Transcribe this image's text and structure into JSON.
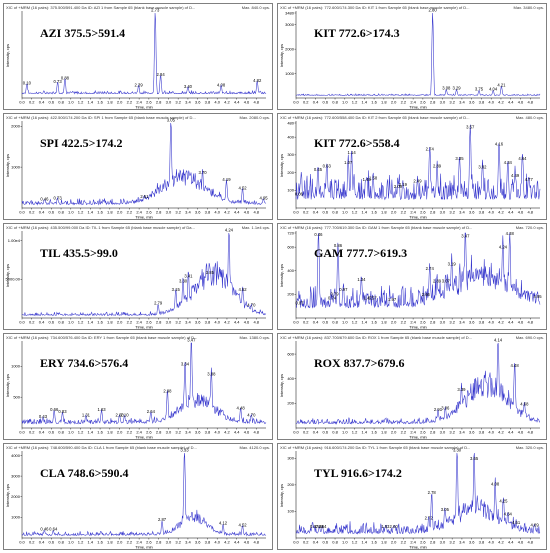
{
  "chart_data": [
    {
      "type": "line",
      "header": "XIC of +MRM (16 pairs): 375.500/591.400 Da ID: AZI 1 from Sample 65 (blank base muscle sample) of D...",
      "max_label": "Max. 840.0 cps.",
      "title": "AZI 375.5>591.4",
      "xlabel": "Time, min",
      "ylabel": "Intensity, cps",
      "y_ticks": [],
      "ylim": [
        0,
        840
      ],
      "xlim": [
        0,
        5
      ],
      "baseline": 0.05,
      "peaks": [
        {
          "x": 0.1,
          "y": 0.14,
          "label": "0.10"
        },
        {
          "x": 0.73,
          "y": 0.16,
          "label": "0.73"
        },
        {
          "x": 0.88,
          "y": 0.2,
          "label": "0.88"
        },
        {
          "x": 2.39,
          "y": 0.12,
          "label": "2.39"
        },
        {
          "x": 2.73,
          "y": 1.0,
          "label": "2.73"
        },
        {
          "x": 2.84,
          "y": 0.24,
          "label": "2.84"
        },
        {
          "x": 3.4,
          "y": 0.1,
          "label": "3.40"
        },
        {
          "x": 4.08,
          "y": 0.12,
          "label": "4.08"
        },
        {
          "x": 4.82,
          "y": 0.17,
          "label": "4.82"
        }
      ],
      "noise": 0.04,
      "hump": null
    },
    {
      "type": "line",
      "header": "XIC of +MRM (16 pairs): 772.600/174.300 Da ID: KIT 1 from Sample 65 (blank base muscle sample) of D...",
      "max_label": "Max. 3480.0 cps.",
      "title": "KIT 772.6>174.3",
      "xlabel": "Time, min",
      "ylabel": "Intensity, cps",
      "y_ticks": [
        "1000",
        "2000",
        "3000",
        "3480"
      ],
      "ylim": [
        0,
        3480
      ],
      "xlim": [
        0,
        5
      ],
      "baseline": 0.03,
      "peaks": [
        {
          "x": 2.8,
          "y": 1.0,
          "label": "2.80"
        },
        {
          "x": 3.08,
          "y": 0.08,
          "label": "3.08"
        },
        {
          "x": 3.29,
          "y": 0.08,
          "label": "3.29"
        },
        {
          "x": 3.75,
          "y": 0.07,
          "label": "3.75"
        },
        {
          "x": 4.04,
          "y": 0.07,
          "label": "4.04"
        },
        {
          "x": 4.21,
          "y": 0.12,
          "label": "4.21"
        }
      ],
      "noise": 0.02,
      "hump": null
    },
    {
      "type": "line",
      "header": "XIC of +MRM (16 pairs): 422.500/174.200 Da ID: SPI 1 from Sample 65 (blank base muscle sample) of D...",
      "max_label": "Max. 2080.0 cps.",
      "title": "SPI 422.5>174.2",
      "xlabel": "Time, min",
      "ylabel": "Intensity, cps",
      "y_ticks": [
        "1000",
        "2000"
      ],
      "ylim": [
        0,
        2080
      ],
      "xlim": [
        0,
        5
      ],
      "baseline": 0.04,
      "peaks": [
        {
          "x": 0.46,
          "y": 0.07,
          "label": "0.46"
        },
        {
          "x": 0.73,
          "y": 0.08,
          "label": "0.73"
        },
        {
          "x": 2.51,
          "y": 0.1,
          "label": "2.51"
        },
        {
          "x": 3.05,
          "y": 1.0,
          "label": "3.05"
        },
        {
          "x": 3.7,
          "y": 0.38,
          "label": "3.70"
        },
        {
          "x": 4.19,
          "y": 0.3,
          "label": "4.19"
        },
        {
          "x": 4.52,
          "y": 0.2,
          "label": "4.52"
        },
        {
          "x": 4.95,
          "y": 0.08,
          "label": "4.95"
        }
      ],
      "noise": 0.08,
      "hump": {
        "center": 3.3,
        "width": 0.6,
        "height": 0.35
      }
    },
    {
      "type": "line",
      "header": "XIC of +MRM (16 pairs): 772.600/558.400 Da ID: KIT 2 from Sample 65 (blank base muscle sample) of D...",
      "max_label": "Max. 480.0 cps.",
      "title": "KIT 772.6>558.4",
      "xlabel": "Time, min",
      "ylabel": "Intensity, cps",
      "y_ticks": [
        "100",
        "200",
        "300",
        "400",
        "480"
      ],
      "ylim": [
        0,
        480
      ],
      "xlim": [
        0,
        5
      ],
      "baseline": 0.1,
      "peaks": [
        {
          "x": 0.06,
          "y": 0.13,
          "label": "0.06"
        },
        {
          "x": 0.45,
          "y": 0.42,
          "label": "0.45"
        },
        {
          "x": 0.63,
          "y": 0.46,
          "label": "0.63"
        },
        {
          "x": 1.07,
          "y": 0.5,
          "label": "1.07"
        },
        {
          "x": 1.14,
          "y": 0.62,
          "label": "1.14"
        },
        {
          "x": 1.45,
          "y": 0.3,
          "label": "1.45"
        },
        {
          "x": 1.58,
          "y": 0.32,
          "label": "1.58"
        },
        {
          "x": 2.09,
          "y": 0.22,
          "label": "2.09"
        },
        {
          "x": 2.19,
          "y": 0.24,
          "label": "2.19"
        },
        {
          "x": 2.49,
          "y": 0.28,
          "label": "2.49"
        },
        {
          "x": 2.74,
          "y": 0.66,
          "label": "2.74"
        },
        {
          "x": 2.89,
          "y": 0.46,
          "label": "2.89"
        },
        {
          "x": 3.35,
          "y": 0.55,
          "label": "3.35"
        },
        {
          "x": 3.57,
          "y": 0.92,
          "label": "3.57"
        },
        {
          "x": 3.82,
          "y": 0.45,
          "label": "3.82"
        },
        {
          "x": 4.16,
          "y": 0.72,
          "label": "4.16"
        },
        {
          "x": 4.34,
          "y": 0.5,
          "label": "4.34"
        },
        {
          "x": 4.49,
          "y": 0.35,
          "label": "4.49"
        },
        {
          "x": 4.64,
          "y": 0.55,
          "label": "4.64"
        },
        {
          "x": 4.77,
          "y": 0.3,
          "label": "4.77"
        }
      ],
      "noise": 0.35,
      "hump": null
    },
    {
      "type": "line",
      "header": "XIC of +MRM (16 pairs): 435.500/99.000 Da ID: TIL 1 from Sample 65 (blank base muscle sample) of Da...",
      "max_label": "Max. 1.1e4 cps.",
      "title": "TIL 435.5>99.0",
      "xlabel": "Time, min",
      "ylabel": "Intensity, cps",
      "y_ticks": [
        "5000.00",
        "1.00e4"
      ],
      "ylim": [
        0,
        11000
      ],
      "xlim": [
        0,
        5
      ],
      "baseline": 0.03,
      "peaks": [
        {
          "x": 2.79,
          "y": 0.14,
          "label": "2.79"
        },
        {
          "x": 3.3,
          "y": 0.4,
          "label": "3.30"
        },
        {
          "x": 3.15,
          "y": 0.3,
          "label": "3.15"
        },
        {
          "x": 3.41,
          "y": 0.46,
          "label": "3.41"
        },
        {
          "x": 3.85,
          "y": 0.5,
          "label": "3.85"
        },
        {
          "x": 4.24,
          "y": 1.0,
          "label": "4.24"
        },
        {
          "x": 4.52,
          "y": 0.3,
          "label": "4.52"
        },
        {
          "x": 4.7,
          "y": 0.12,
          "label": "4.70"
        }
      ],
      "noise": 0.05,
      "hump": {
        "center": 3.9,
        "width": 0.55,
        "height": 0.55
      }
    },
    {
      "type": "line",
      "header": "XIC of +MRM (16 pairs): 777.700/619.300 Da ID: GAM 1 from Sample 65 (blank base muscle sample) of D...",
      "max_label": "Max. 720.0 cps.",
      "title": "GAM 777.7>619.3",
      "xlabel": "Time, min",
      "ylabel": "Intensity, cps",
      "y_ticks": [
        "200",
        "400",
        "600",
        "720"
      ],
      "ylim": [
        0,
        720
      ],
      "xlim": [
        0,
        5
      ],
      "baseline": 0.12,
      "peaks": [
        {
          "x": 0.07,
          "y": 0.14,
          "label": "0.07"
        },
        {
          "x": 0.46,
          "y": 0.95,
          "label": "0.46"
        },
        {
          "x": 0.74,
          "y": 0.2,
          "label": "0.74"
        },
        {
          "x": 0.79,
          "y": 0.25,
          "label": "0.79"
        },
        {
          "x": 0.86,
          "y": 0.82,
          "label": "0.86"
        },
        {
          "x": 0.97,
          "y": 0.3,
          "label": "0.97"
        },
        {
          "x": 1.34,
          "y": 0.42,
          "label": "1.34"
        },
        {
          "x": 1.47,
          "y": 0.2,
          "label": "1.47"
        },
        {
          "x": 1.57,
          "y": 0.2,
          "label": "1.57"
        },
        {
          "x": 1.97,
          "y": 0.18,
          "label": "1.97"
        },
        {
          "x": 2.66,
          "y": 0.24,
          "label": "2.66"
        },
        {
          "x": 2.74,
          "y": 0.55,
          "label": "2.74"
        },
        {
          "x": 2.89,
          "y": 0.4,
          "label": "2.89"
        },
        {
          "x": 3.07,
          "y": 0.4,
          "label": "3.07"
        },
        {
          "x": 3.19,
          "y": 0.6,
          "label": "3.19"
        },
        {
          "x": 3.47,
          "y": 0.93,
          "label": "3.47"
        },
        {
          "x": 4.24,
          "y": 0.8,
          "label": "4.24"
        },
        {
          "x": 4.38,
          "y": 0.96,
          "label": "4.38"
        },
        {
          "x": 4.95,
          "y": 0.22,
          "label": "4.95"
        }
      ],
      "noise": 0.3,
      "hump": {
        "center": 3.8,
        "width": 0.8,
        "height": 0.35
      }
    },
    {
      "type": "line",
      "header": "XIC of +MRM (16 pairs): 734.600/576.400 Da ID: ERY 1 from Sample 65 (blank base muscle sample) of D...",
      "max_label": "Max. 1380.0 cps.",
      "title": "ERY 734.6>576.4",
      "xlabel": "Time, min",
      "ylabel": "Intensity, cps",
      "y_ticks": [
        "500",
        "1000"
      ],
      "ylim": [
        0,
        1380
      ],
      "xlim": [
        0,
        5
      ],
      "baseline": 0.05,
      "peaks": [
        {
          "x": 0.43,
          "y": 0.1,
          "label": "0.43"
        },
        {
          "x": 0.66,
          "y": 0.18,
          "label": "0.66"
        },
        {
          "x": 0.83,
          "y": 0.16,
          "label": "0.83"
        },
        {
          "x": 1.31,
          "y": 0.12,
          "label": "1.31"
        },
        {
          "x": 1.63,
          "y": 0.18,
          "label": "1.63"
        },
        {
          "x": 2.0,
          "y": 0.12,
          "label": "2.00"
        },
        {
          "x": 2.1,
          "y": 0.12,
          "label": "2.10"
        },
        {
          "x": 2.64,
          "y": 0.16,
          "label": "2.64"
        },
        {
          "x": 2.98,
          "y": 0.4,
          "label": "2.98"
        },
        {
          "x": 3.34,
          "y": 0.72,
          "label": "3.34"
        },
        {
          "x": 3.47,
          "y": 1.0,
          "label": "3.47"
        },
        {
          "x": 3.88,
          "y": 0.6,
          "label": "3.88"
        },
        {
          "x": 4.48,
          "y": 0.2,
          "label": "4.48"
        },
        {
          "x": 4.7,
          "y": 0.12,
          "label": "4.70"
        }
      ],
      "noise": 0.08,
      "hump": {
        "center": 3.6,
        "width": 0.5,
        "height": 0.3
      }
    },
    {
      "type": "line",
      "header": "XIC of +MRM (16 pairs): 837.700/679.600 Da ID: ROX 1 from Sample 65 (blank base muscle sample) of D...",
      "max_label": "Max. 690.0 cps.",
      "title": "ROX 837.7>679.6",
      "xlabel": "Time, min",
      "ylabel": "Intensity, cps",
      "y_ticks": [
        "200",
        "400",
        "600"
      ],
      "ylim": [
        0,
        690
      ],
      "xlim": [
        0,
        5
      ],
      "baseline": 0.05,
      "peaks": [
        {
          "x": 2.91,
          "y": 0.18,
          "label": "2.91"
        },
        {
          "x": 3.06,
          "y": 0.2,
          "label": "3.06"
        },
        {
          "x": 3.39,
          "y": 0.42,
          "label": "3.39"
        },
        {
          "x": 4.14,
          "y": 1.0,
          "label": "4.14"
        },
        {
          "x": 4.48,
          "y": 0.7,
          "label": "4.48"
        },
        {
          "x": 4.68,
          "y": 0.25,
          "label": "4.68"
        }
      ],
      "noise": 0.08,
      "hump": {
        "center": 3.9,
        "width": 0.6,
        "height": 0.5
      }
    },
    {
      "type": "line",
      "header": "XIC of +MRM (16 pairs): 748.600/590.400 Da ID: CLA 1 from Sample 65 (blank base muscle sample) of D...",
      "max_label": "Max. 4120.0 cps.",
      "title": "CLA 748.6>590.4",
      "xlabel": "Time, min",
      "ylabel": "Intensity, cps",
      "y_ticks": [
        "1000",
        "2000",
        "3000",
        "4000"
      ],
      "ylim": [
        0,
        4120
      ],
      "xlim": [
        0,
        5
      ],
      "baseline": 0.03,
      "peaks": [
        {
          "x": 0.46,
          "y": 0.07,
          "label": "0.46"
        },
        {
          "x": 0.64,
          "y": 0.07,
          "label": "0.64"
        },
        {
          "x": 2.87,
          "y": 0.18,
          "label": "2.87"
        },
        {
          "x": 3.33,
          "y": 1.0,
          "label": "3.33"
        },
        {
          "x": 4.12,
          "y": 0.14,
          "label": "4.12"
        },
        {
          "x": 4.52,
          "y": 0.12,
          "label": "4.52"
        }
      ],
      "noise": 0.06,
      "hump": {
        "center": 3.5,
        "width": 0.35,
        "height": 0.25
      }
    },
    {
      "type": "line",
      "header": "XIC of +MRM (16 pairs): 916.600/174.200 Da ID: TYL 1 from Sample 65 (blank base muscle sample) of D...",
      "max_label": "Max. 320.0 cps.",
      "title": "TYL 916.6>174.2",
      "xlabel": "Time, min",
      "ylabel": "Intensity, cps",
      "y_ticks": [
        "100",
        "200",
        "300"
      ],
      "ylim": [
        0,
        320
      ],
      "xlim": [
        0,
        5
      ],
      "baseline": 0.05,
      "peaks": [
        {
          "x": 0.37,
          "y": 0.1,
          "label": "0.37"
        },
        {
          "x": 0.48,
          "y": 0.1,
          "label": "0.48"
        },
        {
          "x": 0.54,
          "y": 0.1,
          "label": "0.54"
        },
        {
          "x": 1.83,
          "y": 0.1,
          "label": "1.83"
        },
        {
          "x": 2.0,
          "y": 0.1,
          "label": "2.00"
        },
        {
          "x": 2.72,
          "y": 0.2,
          "label": "2.72"
        },
        {
          "x": 2.78,
          "y": 0.5,
          "label": "2.78"
        },
        {
          "x": 3.05,
          "y": 0.3,
          "label": "3.05"
        },
        {
          "x": 3.3,
          "y": 1.0,
          "label": "3.30"
        },
        {
          "x": 3.65,
          "y": 0.9,
          "label": "3.65"
        },
        {
          "x": 4.08,
          "y": 0.6,
          "label": "4.08"
        },
        {
          "x": 4.25,
          "y": 0.4,
          "label": "4.25"
        },
        {
          "x": 4.34,
          "y": 0.25,
          "label": "4.34"
        },
        {
          "x": 4.51,
          "y": 0.15,
          "label": "4.51"
        },
        {
          "x": 4.89,
          "y": 0.12,
          "label": "4.89"
        }
      ],
      "noise": 0.15,
      "hump": {
        "center": 3.7,
        "width": 0.6,
        "height": 0.3
      }
    }
  ],
  "x_ticks": [
    "0.0",
    "0.2",
    "0.4",
    "0.6",
    "0.8",
    "1.0",
    "1.2",
    "1.4",
    "1.6",
    "1.8",
    "2.0",
    "2.2",
    "2.4",
    "2.6",
    "2.8",
    "3.0",
    "3.2",
    "3.4",
    "3.6",
    "3.8",
    "4.0",
    "4.2",
    "4.4",
    "4.6",
    "4.8"
  ],
  "line_color": "#3333cc"
}
